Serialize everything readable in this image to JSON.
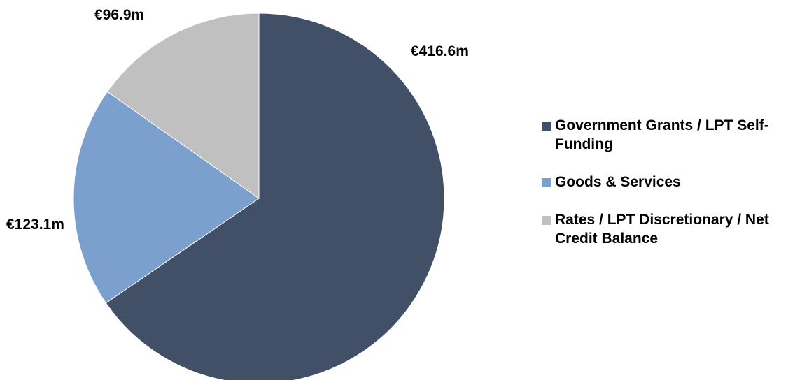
{
  "chart_data": {
    "type": "pie",
    "title": "",
    "slices": [
      {
        "label": "Government Grants / LPT Self-Funding",
        "value": 416.6,
        "display": "€416.6m",
        "color": "#414f67"
      },
      {
        "label": "Goods & Services",
        "value": 123.1,
        "display": "€123.1m",
        "color": "#7ba0cd"
      },
      {
        "label": "Rates / LPT Discretionary / Net Credit Balance",
        "value": 96.9,
        "display": "€96.9m",
        "color": "#c0c0c0"
      }
    ],
    "start": "12 o'clock",
    "direction": "clockwise",
    "legend_position": "right"
  }
}
